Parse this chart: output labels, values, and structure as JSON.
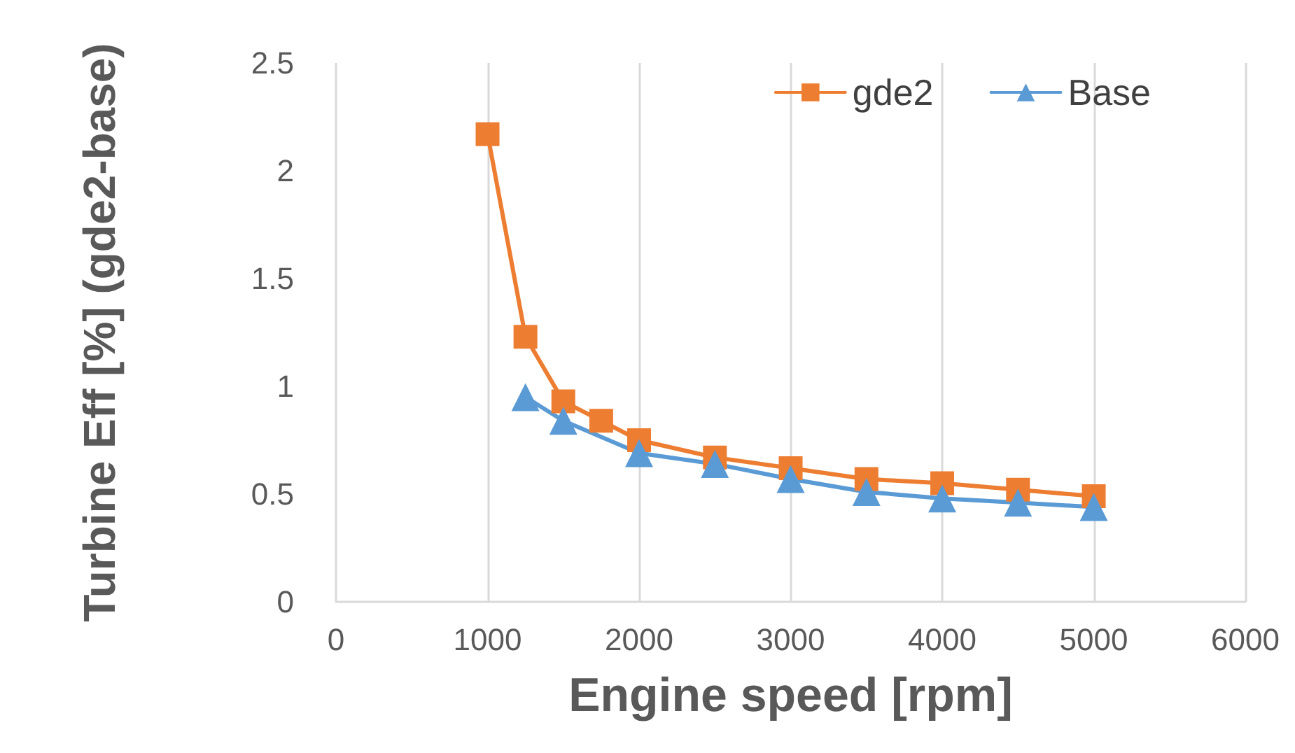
{
  "chart_data": {
    "type": "line",
    "xlabel": "Engine speed [rpm]",
    "ylabel": "Turbine Eff [%] (gde2-base)",
    "xlim": [
      0,
      6000
    ],
    "xticks": [
      0,
      1000,
      2000,
      3000,
      4000,
      5000,
      6000
    ],
    "ylim": [
      0,
      2.5
    ],
    "yticks": [
      0,
      0.5,
      1,
      1.5,
      2,
      2.5
    ],
    "grid": "x",
    "legend": "top right",
    "line_style": "solid",
    "series": [
      {
        "name": "gde2",
        "color": "#ed7d31",
        "marker": "square",
        "x": [
          1000,
          1250,
          1500,
          1750,
          2000,
          2500,
          3000,
          3500,
          4000,
          4500,
          5000
        ],
        "values": [
          2.17,
          1.23,
          0.93,
          0.84,
          0.75,
          0.67,
          0.62,
          0.57,
          0.55,
          0.52,
          0.49
        ]
      },
      {
        "name": "Base",
        "color": "#5b9bd5",
        "marker": "triangle",
        "x": [
          1250,
          1500,
          2000,
          2500,
          3000,
          3500,
          4000,
          4500,
          5000
        ],
        "values": [
          0.95,
          0.84,
          0.69,
          0.64,
          0.57,
          0.51,
          0.48,
          0.46,
          0.44
        ]
      }
    ]
  }
}
